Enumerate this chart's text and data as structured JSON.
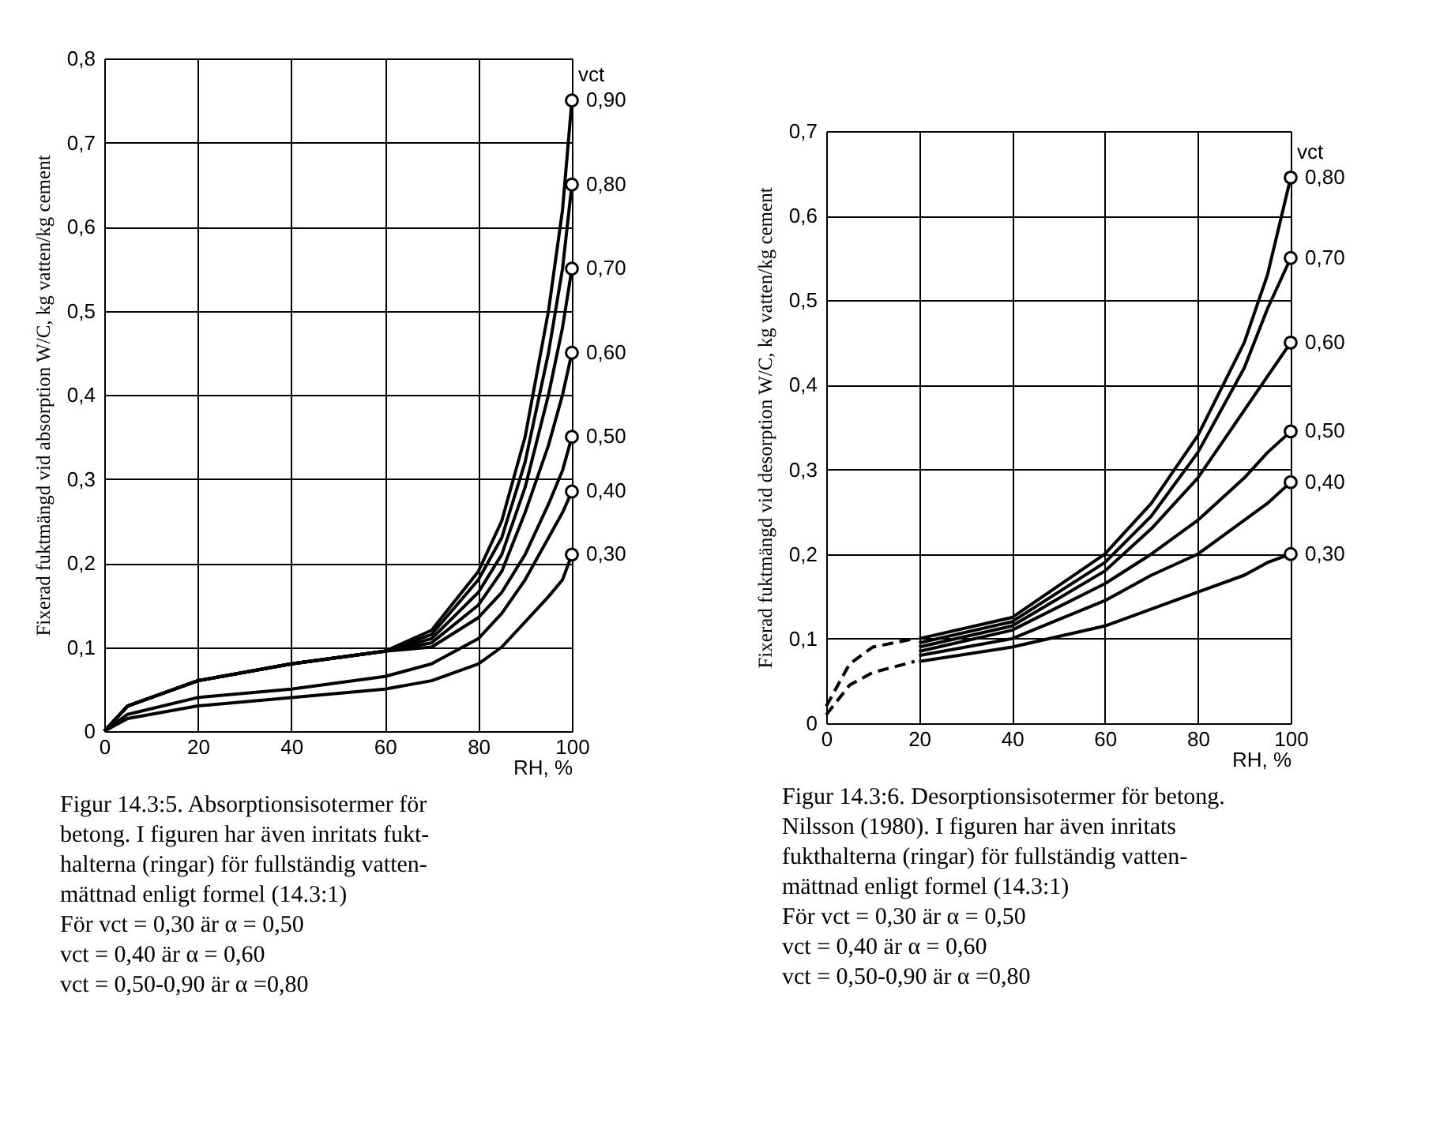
{
  "chart_data": [
    {
      "type": "line",
      "ylabel": "Fixerad fuktmängd vid absorption W/C, kg vatten/kg cement",
      "xlabel": "RH, %",
      "legend_title": "vct",
      "xlim": [
        0,
        100
      ],
      "ylim": [
        0,
        0.8
      ],
      "xticks": [
        0,
        20,
        40,
        60,
        80,
        100
      ],
      "yticks": [
        0,
        {
          "value": 0.1,
          "label": "0,1"
        },
        {
          "value": 0.2,
          "label": "0,2"
        },
        {
          "value": 0.3,
          "label": "0,3"
        },
        {
          "value": 0.4,
          "label": "0,4"
        },
        {
          "value": 0.5,
          "label": "0,5"
        },
        {
          "value": 0.6,
          "label": "0,6"
        },
        {
          "value": 0.7,
          "label": "0,7"
        },
        {
          "value": 0.8,
          "label": "0,8"
        }
      ],
      "grid": true,
      "legend": "right",
      "series": [
        {
          "name": "0,90",
          "color": "#000000",
          "line_style": "solid",
          "x": [
            0,
            5,
            20,
            40,
            60,
            70,
            80,
            85,
            90,
            95,
            98,
            100
          ],
          "values": [
            0,
            0.03,
            0.06,
            0.08,
            0.095,
            0.12,
            0.19,
            0.25,
            0.35,
            0.5,
            0.62,
            0.75
          ]
        },
        {
          "name": "0,80",
          "color": "#000000",
          "line_style": "solid",
          "x": [
            0,
            5,
            20,
            40,
            60,
            70,
            80,
            85,
            90,
            95,
            98,
            100
          ],
          "values": [
            0,
            0.03,
            0.06,
            0.08,
            0.095,
            0.115,
            0.18,
            0.23,
            0.32,
            0.45,
            0.55,
            0.65
          ]
        },
        {
          "name": "0,70",
          "color": "#000000",
          "line_style": "solid",
          "x": [
            0,
            5,
            20,
            40,
            60,
            70,
            80,
            85,
            90,
            95,
            98,
            100
          ],
          "values": [
            0,
            0.03,
            0.06,
            0.08,
            0.095,
            0.11,
            0.165,
            0.21,
            0.29,
            0.4,
            0.48,
            0.55
          ]
        },
        {
          "name": "0,60",
          "color": "#000000",
          "line_style": "solid",
          "x": [
            0,
            5,
            20,
            40,
            60,
            70,
            80,
            85,
            90,
            95,
            98,
            100
          ],
          "values": [
            0,
            0.03,
            0.06,
            0.08,
            0.095,
            0.105,
            0.15,
            0.19,
            0.26,
            0.34,
            0.4,
            0.45
          ]
        },
        {
          "name": "0,50",
          "color": "#000000",
          "line_style": "solid",
          "x": [
            0,
            5,
            20,
            40,
            60,
            70,
            80,
            85,
            90,
            95,
            98,
            100
          ],
          "values": [
            0,
            0.03,
            0.06,
            0.08,
            0.095,
            0.1,
            0.135,
            0.165,
            0.21,
            0.27,
            0.31,
            0.35
          ]
        },
        {
          "name": "0,40",
          "color": "#000000",
          "line_style": "solid",
          "x": [
            0,
            5,
            20,
            40,
            60,
            70,
            80,
            85,
            90,
            95,
            98,
            100
          ],
          "values": [
            0,
            0.02,
            0.04,
            0.05,
            0.065,
            0.08,
            0.11,
            0.14,
            0.18,
            0.23,
            0.26,
            0.285
          ]
        },
        {
          "name": "0,30",
          "color": "#000000",
          "line_style": "solid",
          "x": [
            0,
            5,
            20,
            40,
            60,
            70,
            80,
            85,
            90,
            95,
            98,
            100
          ],
          "values": [
            0,
            0.015,
            0.03,
            0.04,
            0.05,
            0.06,
            0.08,
            0.1,
            0.13,
            0.16,
            0.18,
            0.21
          ]
        }
      ],
      "annotations": [
        "Figur 14.3:5. Absorptionsisotermer för",
        "betong. I figuren har även inritats fukt-",
        "halterna (ringar) för fullständig vatten-",
        "mättnad enligt formel (14.3:1)",
        "För  vct = 0,30 är α = 0,50",
        "vct = 0,40 är α = 0,60",
        "vct = 0,50-0,90 är α =0,80"
      ]
    },
    {
      "type": "line",
      "ylabel": "Fixerad fuktmängd vid desorption W/C, kg vatten/kg cement",
      "xlabel": "RH, %",
      "legend_title": "vct",
      "xlim": [
        0,
        100
      ],
      "ylim": [
        0,
        0.7
      ],
      "xticks": [
        0,
        20,
        40,
        60,
        80,
        100
      ],
      "yticks": [
        0,
        {
          "value": 0.1,
          "label": "0,1"
        },
        {
          "value": 0.2,
          "label": "0,2"
        },
        {
          "value": 0.3,
          "label": "0,3"
        },
        {
          "value": 0.4,
          "label": "0,4"
        },
        {
          "value": 0.5,
          "label": "0,5"
        },
        {
          "value": 0.6,
          "label": "0,6"
        },
        {
          "value": 0.7,
          "label": "0,7"
        }
      ],
      "grid": true,
      "legend": "right",
      "series": [
        {
          "name": "0,80",
          "color": "#000000",
          "line_style": "solid",
          "x": [
            20,
            40,
            60,
            70,
            80,
            90,
            95,
            100
          ],
          "values": [
            0.1,
            0.125,
            0.2,
            0.26,
            0.34,
            0.45,
            0.53,
            0.645
          ]
        },
        {
          "name": "0,70",
          "color": "#000000",
          "line_style": "solid",
          "x": [
            20,
            40,
            60,
            70,
            80,
            90,
            95,
            100
          ],
          "values": [
            0.095,
            0.12,
            0.19,
            0.245,
            0.32,
            0.42,
            0.49,
            0.55
          ]
        },
        {
          "name": "0,60",
          "color": "#000000",
          "line_style": "solid",
          "x": [
            20,
            40,
            60,
            70,
            80,
            90,
            95,
            100
          ],
          "values": [
            0.09,
            0.115,
            0.18,
            0.23,
            0.29,
            0.37,
            0.41,
            0.45
          ]
        },
        {
          "name": "0,50",
          "color": "#000000",
          "line_style": "solid",
          "x": [
            20,
            40,
            60,
            70,
            80,
            90,
            95,
            100
          ],
          "values": [
            0.085,
            0.11,
            0.165,
            0.2,
            0.24,
            0.29,
            0.32,
            0.345
          ]
        },
        {
          "name": "0,40",
          "color": "#000000",
          "line_style": "solid",
          "x": [
            20,
            40,
            60,
            70,
            80,
            90,
            95,
            100
          ],
          "values": [
            0.08,
            0.1,
            0.145,
            0.175,
            0.2,
            0.24,
            0.26,
            0.285
          ]
        },
        {
          "name": "0,30",
          "color": "#000000",
          "line_style": "solid",
          "x": [
            20,
            40,
            60,
            70,
            80,
            90,
            95,
            100
          ],
          "values": [
            0.073,
            0.09,
            0.115,
            0.135,
            0.155,
            0.175,
            0.19,
            0.2
          ]
        },
        {
          "color": "#000000",
          "line_style": "dashed",
          "x": [
            0,
            5,
            10,
            19
          ],
          "values": [
            0.02,
            0.07,
            0.09,
            0.1
          ]
        },
        {
          "color": "#000000",
          "line_style": "dashed",
          "x": [
            0,
            5,
            10,
            19
          ],
          "values": [
            0.01,
            0.045,
            0.06,
            0.073
          ]
        }
      ],
      "annotations": [
        "Figur 14.3:6. Desorptionsisotermer för betong.",
        "Nilsson (1980).  I figuren har även inritats",
        "fukthalterna (ringar) för fullständig vatten-",
        "mättnad enligt formel (14.3:1)",
        "För  vct = 0,30 är α = 0,50",
        "vct = 0,40 är α = 0,60",
        "vct = 0,50-0,90 är α =0,80"
      ]
    }
  ]
}
